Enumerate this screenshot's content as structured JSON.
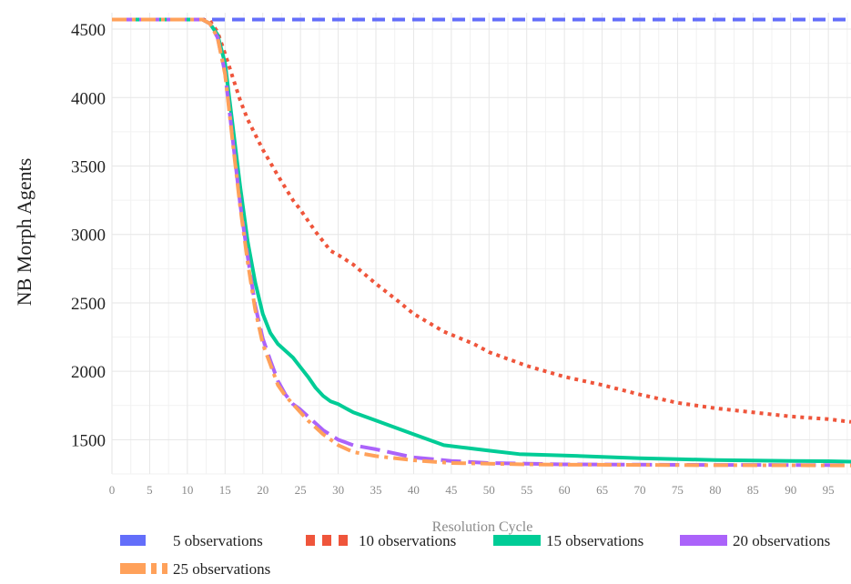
{
  "chart_data": {
    "type": "line",
    "title": "",
    "xlabel": "Resolution Cycle",
    "ylabel": "NB Morph Agents",
    "xlim": [
      0,
      98
    ],
    "ylim": [
      1250,
      4620
    ],
    "x_ticks": [
      "0",
      "5",
      "10",
      "15",
      "20",
      "25",
      "30",
      "35",
      "40",
      "45",
      "50",
      "55",
      "60",
      "65",
      "70",
      "75",
      "80",
      "85",
      "90",
      "95"
    ],
    "y_ticks": [
      "1500",
      "2000",
      "2500",
      "3000",
      "3500",
      "4000",
      "4500"
    ],
    "grid": true,
    "legend_position": "bottom",
    "series": [
      {
        "name": "5 observations",
        "color": "#636efa",
        "dash": "dash",
        "x": [
          0,
          98
        ],
        "y": [
          4570,
          4570
        ]
      },
      {
        "name": "10 observations",
        "color": "#ef553b",
        "dash": "dot",
        "x": [
          0,
          12,
          13,
          14,
          15,
          16,
          17,
          18,
          20,
          22,
          24,
          25,
          27,
          29,
          30,
          32,
          35,
          38,
          40,
          44,
          48,
          50,
          55,
          60,
          65,
          70,
          75,
          80,
          85,
          90,
          95,
          98
        ],
        "y": [
          4570,
          4570,
          4560,
          4480,
          4320,
          4150,
          3980,
          3840,
          3620,
          3430,
          3250,
          3180,
          3020,
          2880,
          2850,
          2780,
          2640,
          2510,
          2420,
          2290,
          2200,
          2140,
          2040,
          1960,
          1900,
          1830,
          1770,
          1730,
          1700,
          1670,
          1650,
          1630
        ]
      },
      {
        "name": "15 observations",
        "color": "#00cc96",
        "dash": "solid",
        "x": [
          0,
          12,
          13,
          14,
          15,
          16,
          17,
          18,
          19,
          20,
          21,
          22,
          24,
          25,
          26,
          27,
          28,
          29,
          30,
          32,
          35,
          38,
          40,
          42,
          44,
          47,
          50,
          54,
          60,
          65,
          70,
          75,
          80,
          85,
          90,
          95,
          98
        ],
        "y": [
          4570,
          4570,
          4540,
          4460,
          4250,
          3800,
          3350,
          2950,
          2650,
          2420,
          2280,
          2200,
          2100,
          2030,
          1960,
          1880,
          1820,
          1780,
          1760,
          1700,
          1640,
          1580,
          1540,
          1500,
          1460,
          1440,
          1420,
          1395,
          1385,
          1375,
          1365,
          1358,
          1352,
          1348,
          1345,
          1343,
          1340
        ]
      },
      {
        "name": "20 observations",
        "color": "#ab63fa",
        "dash": "longdash",
        "x": [
          0,
          12,
          13,
          14,
          15,
          16,
          17,
          18,
          19,
          20,
          21,
          22,
          23,
          24,
          25,
          26,
          27,
          28,
          30,
          32,
          35,
          40,
          45,
          50,
          55,
          60,
          70,
          80,
          90,
          98
        ],
        "y": [
          4570,
          4570,
          4540,
          4440,
          4180,
          3700,
          3220,
          2840,
          2480,
          2240,
          2080,
          1930,
          1830,
          1760,
          1720,
          1670,
          1620,
          1570,
          1500,
          1460,
          1430,
          1370,
          1345,
          1330,
          1325,
          1320,
          1318,
          1316,
          1315,
          1314
        ]
      },
      {
        "name": "25 observations",
        "color": "#ffa15a",
        "dash": "dashdot",
        "x": [
          0,
          12,
          13,
          14,
          15,
          16,
          17,
          18,
          19,
          20,
          21,
          22,
          23,
          24,
          25,
          26,
          27,
          28,
          30,
          32,
          35,
          40,
          45,
          50,
          55,
          60,
          70,
          80,
          90,
          98
        ],
        "y": [
          4570,
          4570,
          4540,
          4440,
          4170,
          3680,
          3200,
          2800,
          2450,
          2200,
          2050,
          1900,
          1820,
          1760,
          1700,
          1640,
          1590,
          1540,
          1460,
          1410,
          1380,
          1350,
          1330,
          1325,
          1320,
          1318,
          1316,
          1314,
          1313,
          1312
        ]
      }
    ]
  }
}
